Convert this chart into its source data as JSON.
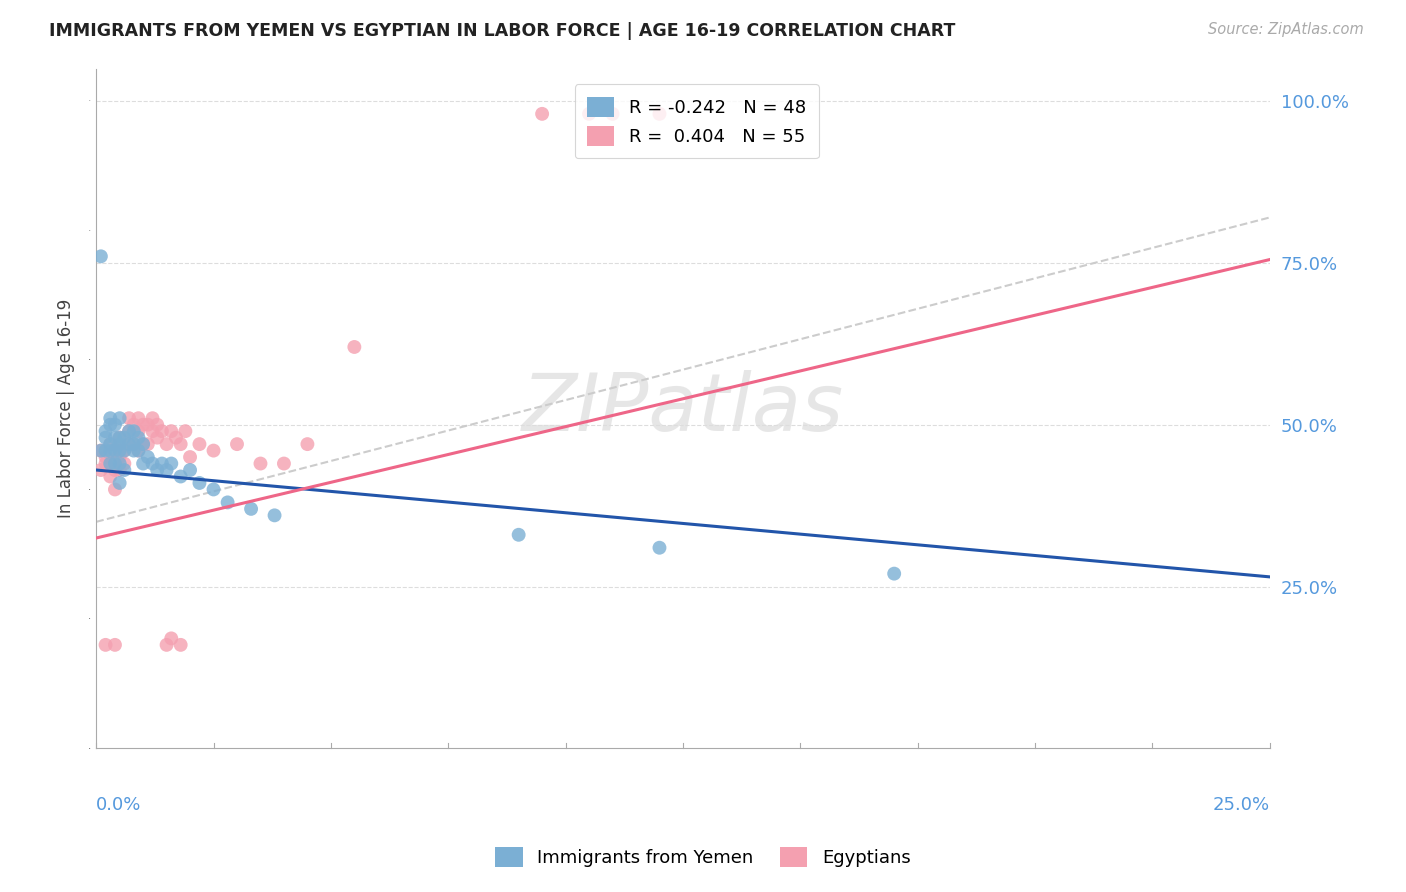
{
  "title": "IMMIGRANTS FROM YEMEN VS EGYPTIAN IN LABOR FORCE | AGE 16-19 CORRELATION CHART",
  "source": "Source: ZipAtlas.com",
  "ylabel": "In Labor Force | Age 16-19",
  "xlim": [
    0.0,
    0.25
  ],
  "ylim": [
    0.0,
    1.05
  ],
  "legend_r1": "R = -0.242",
  "legend_n1": "N = 48",
  "legend_r2": "R =  0.404",
  "legend_n2": "N = 55",
  "color_blue": "#7BAFD4",
  "color_pink": "#F4A0B0",
  "color_line_blue": "#2255AA",
  "color_line_pink": "#EE6688",
  "color_line_dash": "#CCCCCC",
  "watermark_text": "ZIPatlas",
  "fig_bg": "#FFFFFF",
  "grid_color": "#DDDDDD",
  "yemen_x": [
    0.001,
    0.001,
    0.002,
    0.002,
    0.002,
    0.003,
    0.003,
    0.003,
    0.003,
    0.003,
    0.004,
    0.004,
    0.004,
    0.004,
    0.005,
    0.005,
    0.005,
    0.005,
    0.005,
    0.005,
    0.006,
    0.006,
    0.006,
    0.007,
    0.007,
    0.008,
    0.008,
    0.008,
    0.009,
    0.009,
    0.01,
    0.01,
    0.011,
    0.012,
    0.013,
    0.014,
    0.015,
    0.016,
    0.018,
    0.02,
    0.022,
    0.025,
    0.028,
    0.033,
    0.038,
    0.09,
    0.12,
    0.17
  ],
  "yemen_y": [
    0.76,
    0.46,
    0.46,
    0.48,
    0.49,
    0.44,
    0.46,
    0.47,
    0.5,
    0.51,
    0.44,
    0.46,
    0.48,
    0.5,
    0.41,
    0.44,
    0.46,
    0.47,
    0.48,
    0.51,
    0.43,
    0.46,
    0.48,
    0.47,
    0.49,
    0.46,
    0.47,
    0.49,
    0.46,
    0.48,
    0.44,
    0.47,
    0.45,
    0.44,
    0.43,
    0.44,
    0.43,
    0.44,
    0.42,
    0.43,
    0.41,
    0.4,
    0.38,
    0.37,
    0.36,
    0.33,
    0.31,
    0.27
  ],
  "egypt_x": [
    0.001,
    0.001,
    0.002,
    0.002,
    0.003,
    0.003,
    0.003,
    0.004,
    0.004,
    0.004,
    0.005,
    0.005,
    0.005,
    0.005,
    0.006,
    0.006,
    0.007,
    0.007,
    0.007,
    0.008,
    0.008,
    0.009,
    0.009,
    0.009,
    0.01,
    0.01,
    0.011,
    0.011,
    0.012,
    0.012,
    0.013,
    0.013,
    0.014,
    0.015,
    0.016,
    0.017,
    0.018,
    0.019,
    0.02,
    0.022,
    0.025,
    0.03,
    0.035,
    0.04,
    0.045,
    0.055,
    0.095,
    0.105,
    0.11,
    0.12,
    0.002,
    0.004,
    0.015,
    0.016,
    0.018
  ],
  "egypt_y": [
    0.43,
    0.46,
    0.44,
    0.45,
    0.42,
    0.44,
    0.47,
    0.4,
    0.43,
    0.46,
    0.43,
    0.45,
    0.46,
    0.48,
    0.44,
    0.46,
    0.47,
    0.49,
    0.51,
    0.47,
    0.5,
    0.46,
    0.49,
    0.51,
    0.47,
    0.5,
    0.47,
    0.5,
    0.49,
    0.51,
    0.48,
    0.5,
    0.49,
    0.47,
    0.49,
    0.48,
    0.47,
    0.49,
    0.45,
    0.47,
    0.46,
    0.47,
    0.44,
    0.44,
    0.47,
    0.62,
    0.98,
    0.98,
    0.98,
    0.98,
    0.16,
    0.16,
    0.16,
    0.17,
    0.16
  ],
  "blue_line_x": [
    0.0,
    0.25
  ],
  "blue_line_y": [
    0.43,
    0.265
  ],
  "pink_line_x": [
    0.0,
    0.25
  ],
  "pink_line_y": [
    0.325,
    0.755
  ]
}
